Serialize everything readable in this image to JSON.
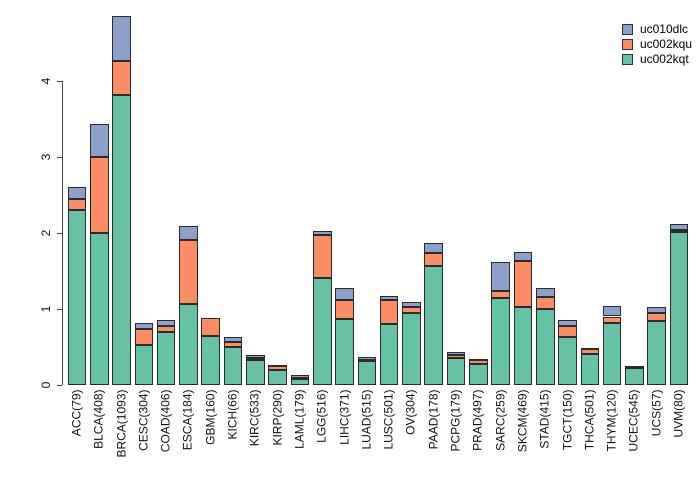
{
  "chart_data": {
    "type": "bar",
    "subtype": "stacked-vertical",
    "title": "",
    "xlabel": "",
    "ylabel": "",
    "background": "#ffffff",
    "grid": false,
    "yticks": [
      "0",
      "1",
      "2",
      "3",
      "4"
    ],
    "ytick_values": [
      0,
      1,
      2,
      3,
      4
    ],
    "ylim": [
      0,
      4.9
    ],
    "bar_border_color": "#2b2b2b",
    "categories": [
      "ACC(79)",
      "BLCA(408)",
      "BRCA(1093)",
      "CESC(304)",
      "COAD(406)",
      "ESCA(184)",
      "GBM(160)",
      "KICH(66)",
      "KIRC(533)",
      "KIRP(290)",
      "LAML(179)",
      "LGG(516)",
      "LIHC(371)",
      "LUAD(515)",
      "LUSC(501)",
      "OV(304)",
      "PAAD(178)",
      "PCPG(179)",
      "PRAD(497)",
      "SARC(259)",
      "SKCM(469)",
      "STAD(415)",
      "TGCT(150)",
      "THCA(501)",
      "THYM(120)",
      "UCEC(545)",
      "UCS(57)",
      "UVM(80)"
    ],
    "series": [
      {
        "name": "uc002kqt",
        "color": "#66C2A5",
        "values": [
          2.3,
          2.0,
          3.81,
          0.52,
          0.69,
          1.06,
          0.65,
          0.5,
          0.33,
          0.2,
          0.08,
          1.4,
          0.87,
          0.31,
          0.8,
          0.94,
          1.57,
          0.35,
          0.28,
          1.14,
          1.02,
          1.0,
          0.63,
          0.41,
          0.81,
          0.23,
          0.84,
          2.01
        ]
      },
      {
        "name": "uc002kqu",
        "color": "#FC8D62",
        "values": [
          0.15,
          1.0,
          0.45,
          0.21,
          0.08,
          0.85,
          0.23,
          0.06,
          0.03,
          0.05,
          0.01,
          0.57,
          0.25,
          0.02,
          0.32,
          0.09,
          0.17,
          0.04,
          0.05,
          0.1,
          0.61,
          0.16,
          0.15,
          0.07,
          0.09,
          0.01,
          0.1,
          0.03
        ]
      },
      {
        "name": "uc010dlc",
        "color": "#8DA0CB",
        "values": [
          0.15,
          0.43,
          0.59,
          0.09,
          0.08,
          0.18,
          0.0,
          0.07,
          0.03,
          0.01,
          0.04,
          0.05,
          0.15,
          0.04,
          0.05,
          0.06,
          0.12,
          0.04,
          0.01,
          0.37,
          0.12,
          0.12,
          0.08,
          0.01,
          0.14,
          0.01,
          0.09,
          0.08
        ]
      }
    ],
    "legend": {
      "position": "top-right",
      "items": [
        {
          "label": "uc010dlc",
          "color": "#8DA0CB"
        },
        {
          "label": "uc002kqu",
          "color": "#FC8D62"
        },
        {
          "label": "uc002kqt",
          "color": "#66C2A5"
        }
      ]
    }
  }
}
